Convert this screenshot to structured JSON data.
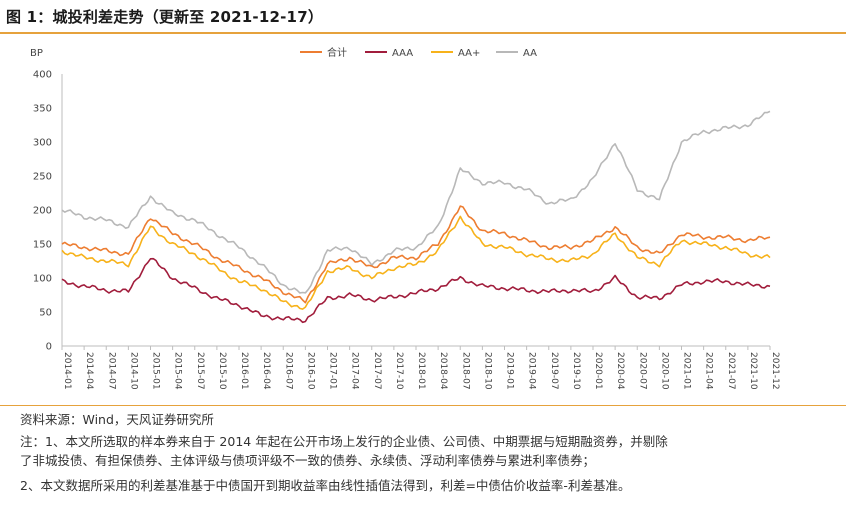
{
  "title": "图 1：城投利差走势（更新至 2021-12-17）",
  "footer": {
    "source": "资料来源：Wind，天风证券研究所",
    "note_line1": "注：1、本文所选取的样本券来自于 2014 年起在公开市场上发行的企业债、公司债、中期票据与短期融资券，并剔除",
    "note_line2": "了非城投债、有担保债券、主体评级与债项评级不一致的债券、永续债、浮动利率债券与累进利率债券；",
    "note_line3": "2、本文数据所采用的利差基准基于中债国开到期收益率由线性插值法得到，利差=中债估价收益率-利差基准。"
  },
  "chart_data": {
    "type": "line",
    "ylabel": "BP",
    "ylim": [
      0,
      400
    ],
    "yticks": [
      0,
      50,
      100,
      150,
      200,
      250,
      300,
      350,
      400
    ],
    "xlabel": "",
    "categories": [
      "2014-01",
      "2014-04",
      "2014-07",
      "2014-10",
      "2015-01",
      "2015-04",
      "2015-07",
      "2015-10",
      "2016-01",
      "2016-04",
      "2016-07",
      "2016-10",
      "2017-01",
      "2017-04",
      "2017-07",
      "2017-10",
      "2018-01",
      "2018-04",
      "2018-07",
      "2018-10",
      "2019-01",
      "2019-04",
      "2019-07",
      "2019-10",
      "2020-01",
      "2020-04",
      "2020-07",
      "2020-10",
      "2021-01",
      "2021-04",
      "2021-07",
      "2021-10",
      "2021-12"
    ],
    "series": [
      {
        "name": "合计",
        "color": "#ed7d31",
        "values": [
          150,
          145,
          140,
          135,
          190,
          165,
          150,
          130,
          115,
          100,
          80,
          65,
          120,
          130,
          115,
          130,
          130,
          150,
          205,
          170,
          165,
          155,
          145,
          145,
          155,
          175,
          145,
          135,
          165,
          160,
          160,
          155,
          160
        ]
      },
      {
        "name": "AAA",
        "color": "#a11d3c",
        "values": [
          95,
          88,
          82,
          80,
          130,
          100,
          85,
          70,
          60,
          45,
          40,
          38,
          70,
          75,
          68,
          72,
          78,
          85,
          100,
          88,
          85,
          82,
          80,
          82,
          80,
          100,
          72,
          70,
          90,
          95,
          95,
          90,
          88
        ]
      },
      {
        "name": "AA+",
        "color": "#f7b21a",
        "values": [
          140,
          130,
          125,
          120,
          175,
          150,
          135,
          115,
          95,
          85,
          65,
          55,
          110,
          115,
          100,
          115,
          120,
          140,
          190,
          150,
          145,
          135,
          128,
          125,
          135,
          165,
          130,
          120,
          155,
          150,
          145,
          135,
          130
        ]
      },
      {
        "name": "AA",
        "color": "#b8b8b8",
        "values": [
          200,
          190,
          185,
          175,
          220,
          195,
          185,
          165,
          145,
          120,
          90,
          75,
          140,
          145,
          120,
          140,
          145,
          175,
          260,
          240,
          240,
          230,
          210,
          215,
          245,
          300,
          230,
          215,
          300,
          315,
          320,
          325,
          345
        ]
      }
    ]
  }
}
